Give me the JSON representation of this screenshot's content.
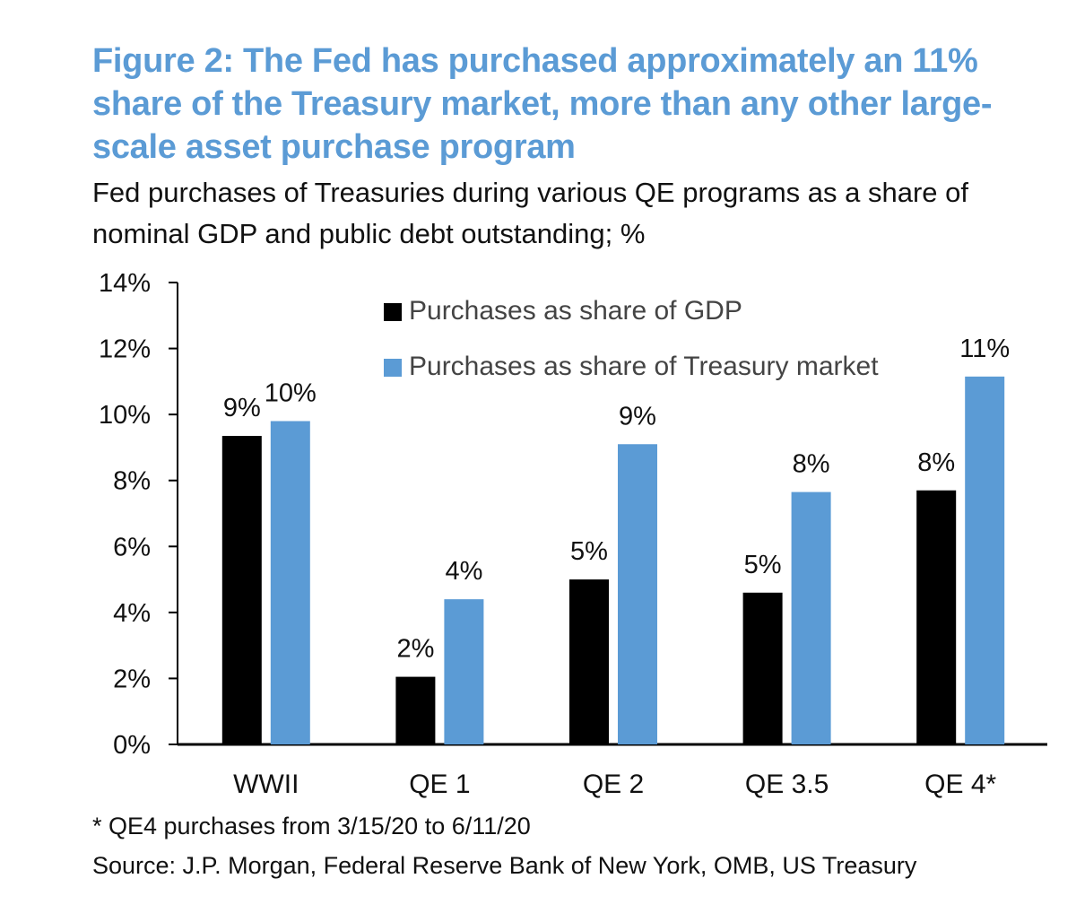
{
  "header": {
    "title": "Figure 2: The Fed has purchased approximately an 11% share of the Treasury market, more than any other large-scale asset purchase program",
    "subtitle": "Fed purchases of Treasuries during various QE programs as a share of nominal GDP and public debt outstanding; %"
  },
  "footer": {
    "footnote": "* QE4 purchases from 3/15/20 to 6/11/20",
    "source": "Source: J.P. Morgan, Federal Reserve Bank of New York, OMB, US Treasury"
  },
  "chart_data": {
    "type": "bar",
    "categories": [
      "WWII",
      "QE 1",
      "QE 2",
      "QE 3.5",
      "QE 4*"
    ],
    "series": [
      {
        "name": "Purchases as share of GDP",
        "color": "#000000",
        "values": [
          9.35,
          2.05,
          5.0,
          4.6,
          7.7
        ],
        "labels": [
          "9%",
          "2%",
          "5%",
          "5%",
          "8%"
        ]
      },
      {
        "name": "Purchases as share of Treasury market",
        "color": "#5b9bd5",
        "values": [
          9.8,
          4.4,
          9.1,
          7.65,
          11.15
        ],
        "labels": [
          "10%",
          "4%",
          "9%",
          "8%",
          "11%"
        ]
      }
    ],
    "ylim": [
      0,
      14
    ],
    "yticks": [
      0,
      2,
      4,
      6,
      8,
      10,
      12,
      14
    ],
    "ytick_labels": [
      "0%",
      "2%",
      "4%",
      "6%",
      "8%",
      "10%",
      "12%",
      "14%"
    ],
    "xlabel": "",
    "ylabel": "",
    "legend_position": "top-center",
    "grid": false
  }
}
